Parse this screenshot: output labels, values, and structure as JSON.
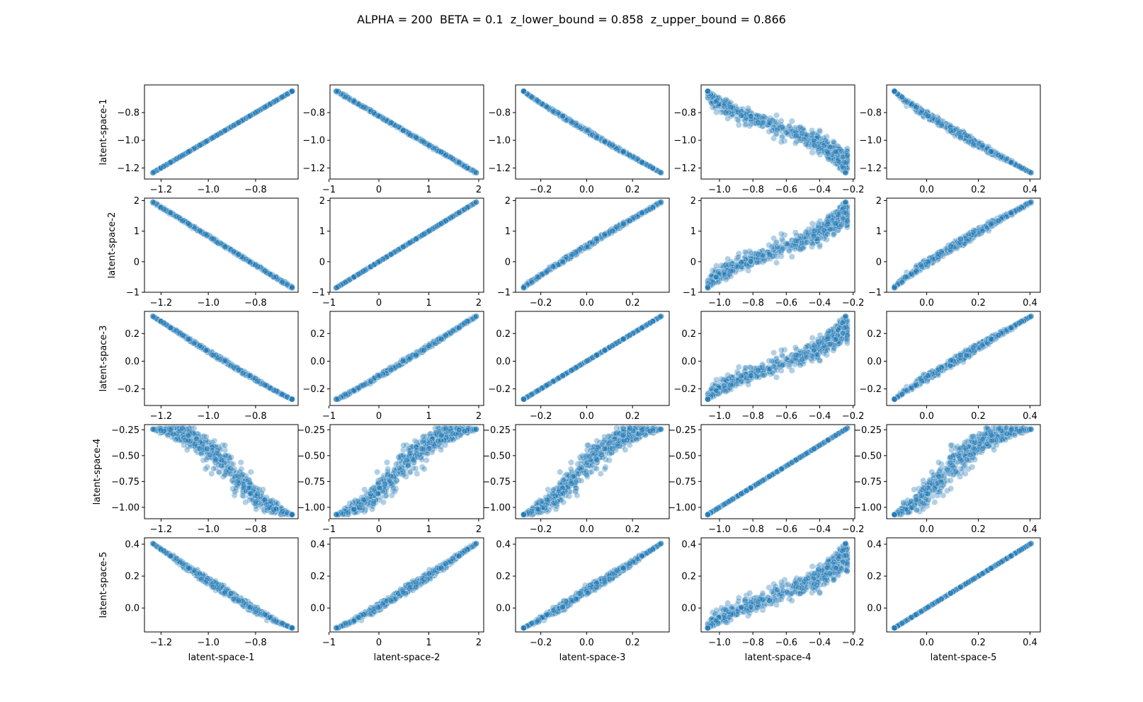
{
  "figure": {
    "title": "ALPHA = 200  BETA = 0.1  z_lower_bound = 0.858  z_upper_bound = 0.866"
  },
  "chart_data": {
    "type": "scatter",
    "kind": "pairplot",
    "grid": false,
    "point_color": "#1f77b4",
    "variables": [
      {
        "name": "latent-space-1",
        "range": [
          -1.235,
          -0.645
        ],
        "ticks": [
          -1.2,
          -1.0,
          -0.8
        ],
        "tick_labels": [
          "−1.2",
          "−1.0",
          "−0.8"
        ],
        "ylim": [
          -1.28,
          -0.6
        ]
      },
      {
        "name": "latent-space-2",
        "range": [
          -0.85,
          1.95
        ],
        "ticks": [
          -1,
          0,
          1,
          2
        ],
        "tick_labels": [
          "−1",
          "0",
          "1",
          "2"
        ],
        "ylim": [
          -1.0,
          2.08
        ]
      },
      {
        "name": "latent-space-3",
        "range": [
          -0.275,
          0.325
        ],
        "ticks": [
          -0.2,
          0.0,
          0.2
        ],
        "tick_labels": [
          "−0.2",
          "0.0",
          "0.2"
        ],
        "ylim": [
          -0.32,
          0.36
        ]
      },
      {
        "name": "latent-space-4",
        "range": [
          -1.07,
          -0.245
        ],
        "ticks": [
          -1.0,
          -0.75,
          -0.5,
          -0.25
        ],
        "tick_labels": [
          "−1.00",
          "−0.75",
          "−0.50",
          "−0.25"
        ],
        "ylim": [
          -1.11,
          -0.2
        ]
      },
      {
        "name": "latent-space-5",
        "range": [
          -0.125,
          0.405
        ],
        "ticks": [
          0.0,
          0.2,
          0.4
        ],
        "tick_labels": [
          "0.0",
          "0.2",
          "0.4"
        ],
        "ylim": [
          -0.15,
          0.44
        ]
      }
    ],
    "x_axes": [
      {
        "xlim": [
          -1.27,
          -0.62
        ],
        "ticks": [
          -1.2,
          -1.0,
          -0.8
        ],
        "tick_labels": [
          "−1.2",
          "−1.0",
          "−0.8"
        ]
      },
      {
        "xlim": [
          -0.98,
          2.1
        ],
        "ticks": [
          -1,
          0,
          1,
          2
        ],
        "tick_labels": [
          "−1",
          "0",
          "1",
          "2"
        ]
      },
      {
        "xlim": [
          -0.31,
          0.36
        ],
        "ticks": [
          -0.2,
          0.0,
          0.2
        ],
        "tick_labels": [
          "−0.2",
          "0.0",
          "0.2"
        ]
      },
      {
        "xlim": [
          -1.11,
          -0.19
        ],
        "ticks": [
          -1.0,
          -0.8,
          -0.6,
          -0.4,
          -0.2
        ],
        "tick_labels": [
          "−1.0",
          "−0.8",
          "−0.6",
          "−0.4",
          "−0.2"
        ]
      },
      {
        "xlim": [
          -0.155,
          0.44
        ],
        "ticks": [
          0.0,
          0.2,
          0.4
        ],
        "tick_labels": [
          "0.0",
          "0.2",
          "0.4"
        ]
      }
    ]
  }
}
